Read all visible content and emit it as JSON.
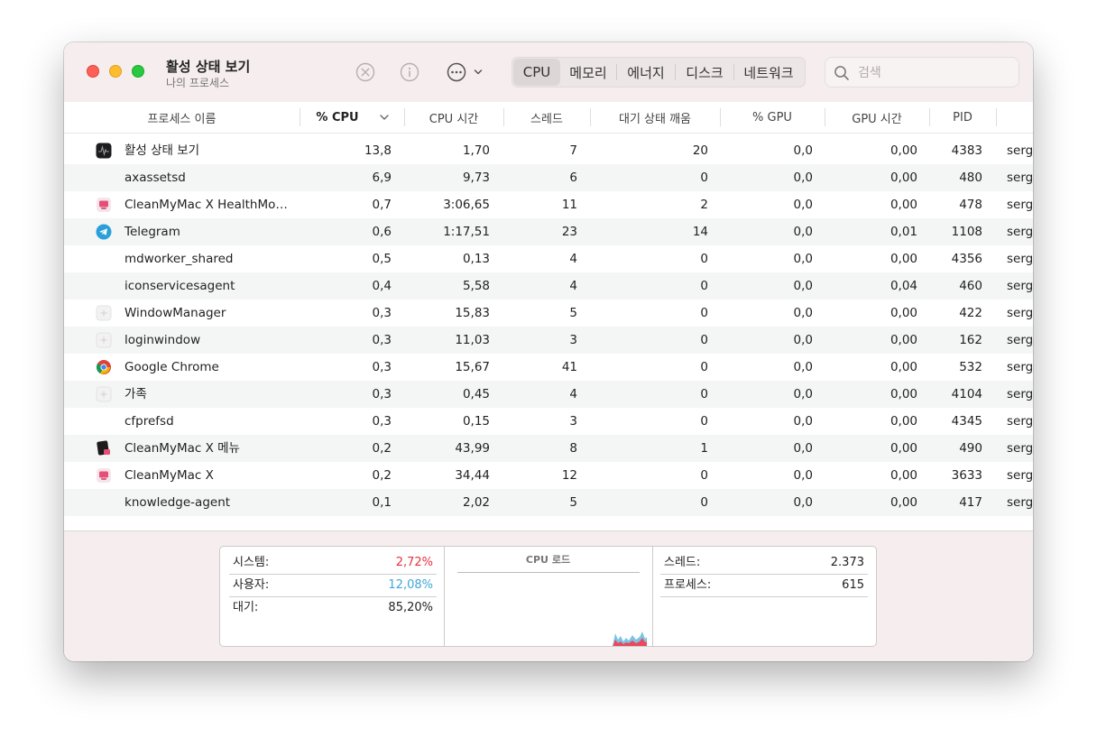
{
  "window": {
    "title": "활성 상태 보기",
    "subtitle": "나의 프로세스"
  },
  "toolbar": {
    "stop_icon": "x-circle-icon",
    "info_icon": "info-circle-icon",
    "more_icon": "ellipsis-circle-icon",
    "tabs": [
      {
        "label": "CPU",
        "active": true
      },
      {
        "label": "메모리",
        "active": false
      },
      {
        "label": "에너지",
        "active": false
      },
      {
        "label": "디스크",
        "active": false
      },
      {
        "label": "네트워크",
        "active": false
      }
    ],
    "search_placeholder": "검색"
  },
  "table": {
    "columns": [
      "프로세스 이름",
      "% CPU",
      "CPU 시간",
      "스레드",
      "대기 상태 깨움",
      "% GPU",
      "GPU 시간",
      "PID"
    ],
    "sorted_column": "% CPU",
    "rows": [
      {
        "icon": "activity-monitor-icon",
        "name": "활성 상태 보기",
        "cpu": "13,8",
        "cpu_time": "1,70",
        "threads": "7",
        "wakeups": "20",
        "gpu": "0,0",
        "gpu_time": "0,00",
        "pid": "4383",
        "user": "serg"
      },
      {
        "icon": "",
        "name": "axassetsd",
        "cpu": "6,9",
        "cpu_time": "9,73",
        "threads": "6",
        "wakeups": "0",
        "gpu": "0,0",
        "gpu_time": "0,00",
        "pid": "480",
        "user": "serg"
      },
      {
        "icon": "cleanmymac-icon",
        "name": "CleanMyMac X HealthMo…",
        "cpu": "0,7",
        "cpu_time": "3:06,65",
        "threads": "11",
        "wakeups": "2",
        "gpu": "0,0",
        "gpu_time": "0,00",
        "pid": "478",
        "user": "serg"
      },
      {
        "icon": "telegram-icon",
        "name": "Telegram",
        "cpu": "0,6",
        "cpu_time": "1:17,51",
        "threads": "23",
        "wakeups": "14",
        "gpu": "0,0",
        "gpu_time": "0,01",
        "pid": "1108",
        "user": "serg"
      },
      {
        "icon": "",
        "name": "mdworker_shared",
        "cpu": "0,5",
        "cpu_time": "0,13",
        "threads": "4",
        "wakeups": "0",
        "gpu": "0,0",
        "gpu_time": "0,00",
        "pid": "4356",
        "user": "serg"
      },
      {
        "icon": "",
        "name": "iconservicesagent",
        "cpu": "0,4",
        "cpu_time": "5,58",
        "threads": "4",
        "wakeups": "0",
        "gpu": "0,0",
        "gpu_time": "0,04",
        "pid": "460",
        "user": "serg"
      },
      {
        "icon": "generic-app-icon",
        "name": "WindowManager",
        "cpu": "0,3",
        "cpu_time": "15,83",
        "threads": "5",
        "wakeups": "0",
        "gpu": "0,0",
        "gpu_time": "0,00",
        "pid": "422",
        "user": "serg"
      },
      {
        "icon": "generic-app-icon",
        "name": "loginwindow",
        "cpu": "0,3",
        "cpu_time": "11,03",
        "threads": "3",
        "wakeups": "0",
        "gpu": "0,0",
        "gpu_time": "0,00",
        "pid": "162",
        "user": "serg"
      },
      {
        "icon": "chrome-icon",
        "name": "Google Chrome",
        "cpu": "0,3",
        "cpu_time": "15,67",
        "threads": "41",
        "wakeups": "0",
        "gpu": "0,0",
        "gpu_time": "0,00",
        "pid": "532",
        "user": "serg"
      },
      {
        "icon": "generic-app-icon",
        "name": "가족",
        "cpu": "0,3",
        "cpu_time": "0,45",
        "threads": "4",
        "wakeups": "0",
        "gpu": "0,0",
        "gpu_time": "0,00",
        "pid": "4104",
        "user": "serg"
      },
      {
        "icon": "",
        "name": "cfprefsd",
        "cpu": "0,3",
        "cpu_time": "0,15",
        "threads": "3",
        "wakeups": "0",
        "gpu": "0,0",
        "gpu_time": "0,00",
        "pid": "4345",
        "user": "serg"
      },
      {
        "icon": "cleanmymac-menu-icon",
        "name": "CleanMyMac X 메뉴",
        "cpu": "0,2",
        "cpu_time": "43,99",
        "threads": "8",
        "wakeups": "1",
        "gpu": "0,0",
        "gpu_time": "0,00",
        "pid": "490",
        "user": "serg"
      },
      {
        "icon": "cleanmymac-icon",
        "name": "CleanMyMac X",
        "cpu": "0,2",
        "cpu_time": "34,44",
        "threads": "12",
        "wakeups": "0",
        "gpu": "0,0",
        "gpu_time": "0,00",
        "pid": "3633",
        "user": "serg"
      },
      {
        "icon": "",
        "name": "knowledge-agent",
        "cpu": "0,1",
        "cpu_time": "2,02",
        "threads": "5",
        "wakeups": "0",
        "gpu": "0,0",
        "gpu_time": "0,00",
        "pid": "417",
        "user": "serg"
      }
    ]
  },
  "summary": {
    "left": [
      {
        "label": "시스템:",
        "value": "2,72%",
        "color": "#e8323c"
      },
      {
        "label": "사용자:",
        "value": "12,08%",
        "color": "#3ea6d8"
      },
      {
        "label": "대기:",
        "value": "85,20%",
        "color": "#222222"
      }
    ],
    "chart_title": "CPU 로드",
    "right": [
      {
        "label": "스레드:",
        "value": "2.373"
      },
      {
        "label": "프로세스:",
        "value": "615"
      }
    ]
  },
  "colors": {
    "system": "#e8323c",
    "user": "#3ea6d8",
    "toolbar_bg": "#f6eeee"
  }
}
